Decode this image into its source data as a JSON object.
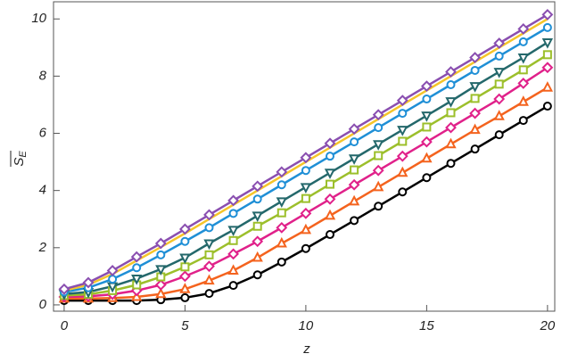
{
  "chart_data": {
    "type": "line",
    "xlabel": "z",
    "ylabel": {
      "symbol": "S",
      "subscript": "E"
    },
    "x": [
      0,
      1,
      2,
      3,
      4,
      5,
      6,
      7,
      8,
      9,
      10,
      11,
      12,
      13,
      14,
      15,
      16,
      17,
      18,
      19,
      20
    ],
    "xlim": [
      -0.44,
      20.3
    ],
    "xticks": [
      0,
      5,
      10,
      15,
      20
    ],
    "ylim": [
      -0.22,
      10.6
    ],
    "yticks": [
      0,
      2,
      4,
      6,
      8,
      10
    ],
    "grid": false,
    "series": [
      {
        "color": "#000000",
        "marker": "circle",
        "values": [
          0.15,
          0.15,
          0.15,
          0.15,
          0.18,
          0.25,
          0.4,
          0.68,
          1.05,
          1.5,
          1.97,
          2.46,
          2.95,
          3.45,
          3.95,
          4.45,
          4.95,
          5.45,
          5.95,
          6.45,
          6.95
        ]
      },
      {
        "color": "#f4631e",
        "marker": "triangle",
        "values": [
          0.22,
          0.22,
          0.24,
          0.28,
          0.38,
          0.55,
          0.85,
          1.2,
          1.65,
          2.15,
          2.62,
          3.12,
          3.62,
          4.12,
          4.62,
          5.12,
          5.62,
          6.12,
          6.6,
          7.1,
          7.6
        ]
      },
      {
        "color": "#e0218a",
        "marker": "diamond",
        "values": [
          0.28,
          0.3,
          0.37,
          0.5,
          0.7,
          1.0,
          1.35,
          1.78,
          2.22,
          2.7,
          3.2,
          3.7,
          4.2,
          4.7,
          5.2,
          5.7,
          6.2,
          6.7,
          7.2,
          7.75,
          8.3
        ]
      },
      {
        "color": "#9cbf2b",
        "marker": "square",
        "values": [
          0.33,
          0.37,
          0.5,
          0.7,
          0.98,
          1.33,
          1.75,
          2.25,
          2.75,
          3.22,
          3.72,
          4.22,
          4.72,
          5.22,
          5.72,
          6.22,
          6.72,
          7.22,
          7.72,
          8.22,
          8.75
        ]
      },
      {
        "color": "#24686b",
        "marker": "down-triangle",
        "values": [
          0.38,
          0.45,
          0.65,
          0.92,
          1.25,
          1.65,
          2.15,
          2.62,
          3.12,
          3.62,
          4.12,
          4.62,
          5.12,
          5.62,
          6.12,
          6.62,
          7.12,
          7.65,
          8.15,
          8.65,
          9.18
        ]
      },
      {
        "color": "#1f8fd6",
        "marker": "circle",
        "values": [
          0.45,
          0.6,
          0.9,
          1.3,
          1.75,
          2.22,
          2.7,
          3.2,
          3.7,
          4.2,
          4.7,
          5.2,
          5.7,
          6.2,
          6.7,
          7.2,
          7.7,
          8.2,
          8.7,
          9.2,
          9.7
        ]
      },
      {
        "color": "#f5c52a",
        "marker": "none",
        "values": [
          0.5,
          0.7,
          1.08,
          1.55,
          2.02,
          2.5,
          3.0,
          3.5,
          4.0,
          4.5,
          5.0,
          5.5,
          6.0,
          6.5,
          7.0,
          7.5,
          8.0,
          8.5,
          9.0,
          9.5,
          10.0
        ]
      },
      {
        "color": "#8a4fb0",
        "marker": "diamond",
        "values": [
          0.55,
          0.78,
          1.2,
          1.68,
          2.15,
          2.65,
          3.15,
          3.65,
          4.15,
          4.65,
          5.15,
          5.65,
          6.15,
          6.65,
          7.15,
          7.65,
          8.15,
          8.65,
          9.15,
          9.65,
          10.15
        ]
      }
    ]
  }
}
